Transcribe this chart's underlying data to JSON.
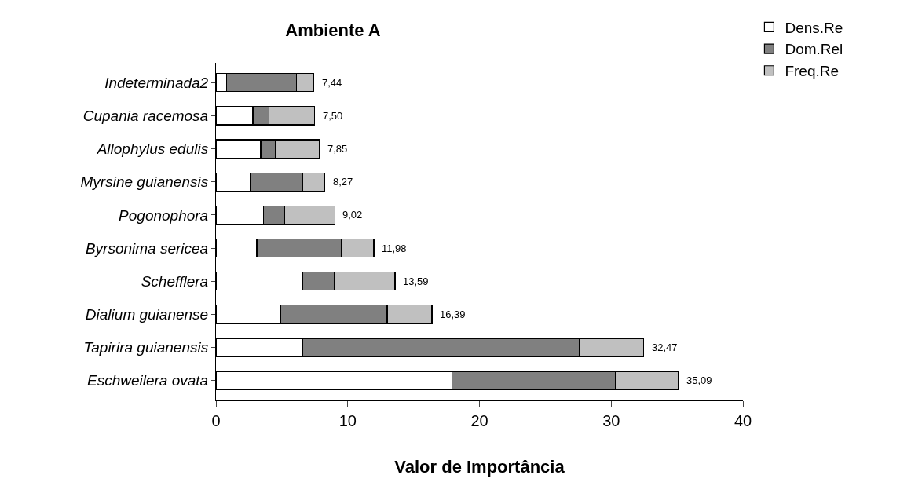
{
  "chart_data": {
    "type": "bar",
    "orientation": "horizontal",
    "stacked": true,
    "title": "Ambiente A",
    "xlabel": "Valor de Importância",
    "categories": [
      "Indeterminada2",
      "Cupania racemosa",
      "Allophylus edulis",
      "Myrsine guianensis",
      "Pogonophora",
      "Byrsonima sericea",
      "Schefflera",
      "Dialium guianense",
      "Tapirira guianensis",
      "Eschweilera ovata"
    ],
    "series": [
      {
        "name": "Dens.Re",
        "color": "#ffffff",
        "values": [
          0.8,
          2.8,
          3.4,
          2.6,
          3.6,
          3.1,
          6.6,
          4.9,
          6.6,
          17.9
        ]
      },
      {
        "name": "Dom.Rel",
        "color": "#808080",
        "values": [
          5.3,
          1.2,
          1.1,
          4.0,
          1.6,
          6.4,
          2.4,
          8.1,
          21.0,
          12.4
        ]
      },
      {
        "name": "Freq.Re",
        "color": "#c0c0c0",
        "values": [
          1.34,
          3.5,
          3.35,
          1.67,
          3.82,
          2.48,
          4.59,
          3.39,
          4.87,
          4.79
        ]
      }
    ],
    "totals": [
      "7,44",
      "7,50",
      "7,85",
      "8,27",
      "9,02",
      "11,98",
      "13,59",
      "16,39",
      "32,47",
      "35,09"
    ],
    "xlim": [
      0,
      40
    ],
    "xticks": [
      0,
      10,
      20,
      30,
      40
    ],
    "legend": "top right"
  }
}
